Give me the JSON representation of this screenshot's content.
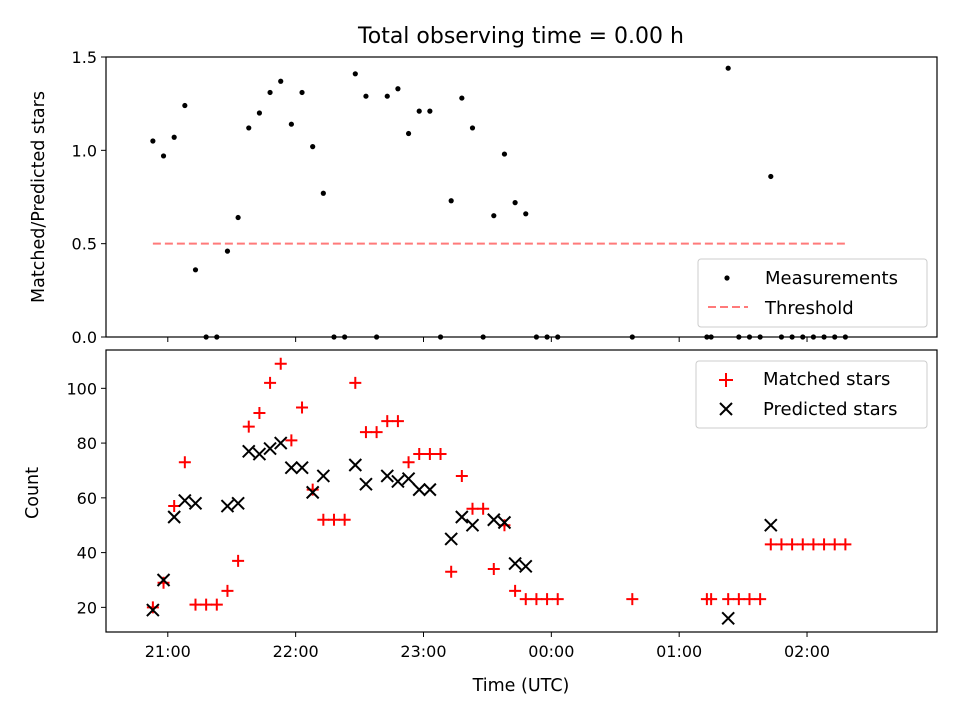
{
  "figure_title": "Total observing time = 0.00 h",
  "chart_data": [
    {
      "type": "scatter",
      "title": "Total observing time = 0.00 h",
      "ylabel": "Matched/Predicted stars",
      "xlabel": "",
      "x_is_time_of_day_minutes_from_midnight": true,
      "xlim": [
        -209,
        181
      ],
      "ylim": [
        0,
        1.5
      ],
      "yticks": [
        "0.0",
        "0.5",
        "1.0",
        "1.5"
      ],
      "xtick_values": [
        -180,
        -120,
        -60,
        0,
        60,
        120
      ],
      "legend": {
        "position": "lower-right",
        "entries": [
          "Measurements",
          "Threshold"
        ]
      },
      "grid": false,
      "threshold": {
        "name": "Threshold",
        "value": 0.5,
        "x": [
          "20:53",
          "02:18"
        ],
        "color": "#ff7a7a"
      },
      "series": [
        {
          "name": "Measurements",
          "marker": "dot",
          "color": "#000000",
          "x": [
            "20:53",
            "20:58",
            "21:03",
            "21:08",
            "21:13",
            "21:18",
            "21:23",
            "21:28",
            "21:33",
            "21:38",
            "21:43",
            "21:48",
            "21:53",
            "21:58",
            "22:03",
            "22:08",
            "22:13",
            "22:18",
            "22:23",
            "22:28",
            "22:33",
            "22:38",
            "22:43",
            "22:48",
            "22:53",
            "22:58",
            "23:03",
            "23:08",
            "23:13",
            "23:18",
            "23:23",
            "23:28",
            "23:33",
            "23:38",
            "23:43",
            "23:48",
            "23:53",
            "23:58",
            "00:03",
            "00:38",
            "01:13",
            "01:15",
            "01:23",
            "01:28",
            "01:33",
            "01:38",
            "01:43",
            "01:48",
            "01:53",
            "01:58",
            "02:03",
            "02:08",
            "02:13",
            "02:18"
          ],
          "y": [
            1.05,
            0.97,
            1.07,
            1.24,
            0.36,
            0.0,
            0.0,
            0.46,
            0.64,
            1.12,
            1.2,
            1.31,
            1.37,
            1.14,
            1.31,
            1.02,
            0.77,
            0.0,
            0.0,
            1.41,
            1.29,
            0.0,
            1.29,
            1.33,
            1.09,
            1.21,
            1.21,
            0.0,
            0.73,
            1.28,
            1.12,
            0.0,
            0.65,
            0.98,
            0.72,
            0.66,
            0.0,
            0.0,
            0.0,
            0.0,
            0.0,
            0.0,
            1.44,
            0.0,
            0.0,
            0.0,
            0.86,
            0.0,
            0.0,
            0.0,
            0.0,
            0.0,
            0.0,
            0.0
          ]
        }
      ]
    },
    {
      "type": "scatter",
      "title": "",
      "ylabel": "Count",
      "xlabel": "Time (UTC)",
      "xlim": [
        -209,
        181
      ],
      "ylim": [
        11,
        114
      ],
      "yticks": [
        "20",
        "40",
        "60",
        "80",
        "100"
      ],
      "xticks": [
        "21:00",
        "22:00",
        "23:00",
        "00:00",
        "01:00",
        "02:00"
      ],
      "xtick_values": [
        -180,
        -120,
        -60,
        0,
        60,
        120
      ],
      "legend": {
        "position": "upper-right",
        "entries": [
          "Matched stars",
          "Predicted stars"
        ]
      },
      "grid": false,
      "series": [
        {
          "name": "Matched stars",
          "marker": "plus",
          "color": "#ff0000",
          "x": [
            "20:53",
            "20:58",
            "21:03",
            "21:08",
            "21:13",
            "21:18",
            "21:23",
            "21:28",
            "21:33",
            "21:38",
            "21:43",
            "21:48",
            "21:53",
            "21:58",
            "22:03",
            "22:08",
            "22:13",
            "22:18",
            "22:23",
            "22:28",
            "22:33",
            "22:38",
            "22:43",
            "22:48",
            "22:53",
            "22:58",
            "23:03",
            "23:08",
            "23:13",
            "23:18",
            "23:23",
            "23:28",
            "23:33",
            "23:38",
            "23:43",
            "23:48",
            "23:53",
            "23:58",
            "00:03",
            "00:38",
            "01:13",
            "01:15",
            "01:23",
            "01:28",
            "01:33",
            "01:38",
            "01:43",
            "01:48",
            "01:53",
            "01:58",
            "02:03",
            "02:08",
            "02:13",
            "02:18"
          ],
          "y": [
            20,
            29,
            57,
            73,
            21,
            21,
            21,
            26,
            37,
            86,
            91,
            102,
            109,
            81,
            93,
            63,
            52,
            52,
            52,
            102,
            84,
            84,
            88,
            88,
            73,
            76,
            76,
            76,
            33,
            68,
            56,
            56,
            34,
            50,
            26,
            23,
            23,
            23,
            23,
            23,
            23,
            23,
            23,
            23,
            23,
            23,
            43,
            43,
            43,
            43,
            43,
            43,
            43,
            43
          ]
        },
        {
          "name": "Predicted stars",
          "marker": "x",
          "color": "#000000",
          "x": [
            "20:53",
            "20:58",
            "21:03",
            "21:08",
            "21:13",
            "21:28",
            "21:33",
            "21:38",
            "21:43",
            "21:48",
            "21:53",
            "21:58",
            "22:03",
            "22:08",
            "22:13",
            "22:28",
            "22:33",
            "22:43",
            "22:48",
            "22:53",
            "22:58",
            "23:03",
            "23:13",
            "23:18",
            "23:23",
            "23:33",
            "23:38",
            "23:43",
            "23:48",
            "01:23",
            "01:43"
          ],
          "y": [
            19,
            30,
            53,
            59,
            58,
            57,
            58,
            77,
            76,
            78,
            80,
            71,
            71,
            62,
            68,
            72,
            65,
            68,
            66,
            67,
            63,
            63,
            45,
            53,
            50,
            52,
            51,
            36,
            35,
            16,
            50
          ]
        }
      ]
    }
  ]
}
